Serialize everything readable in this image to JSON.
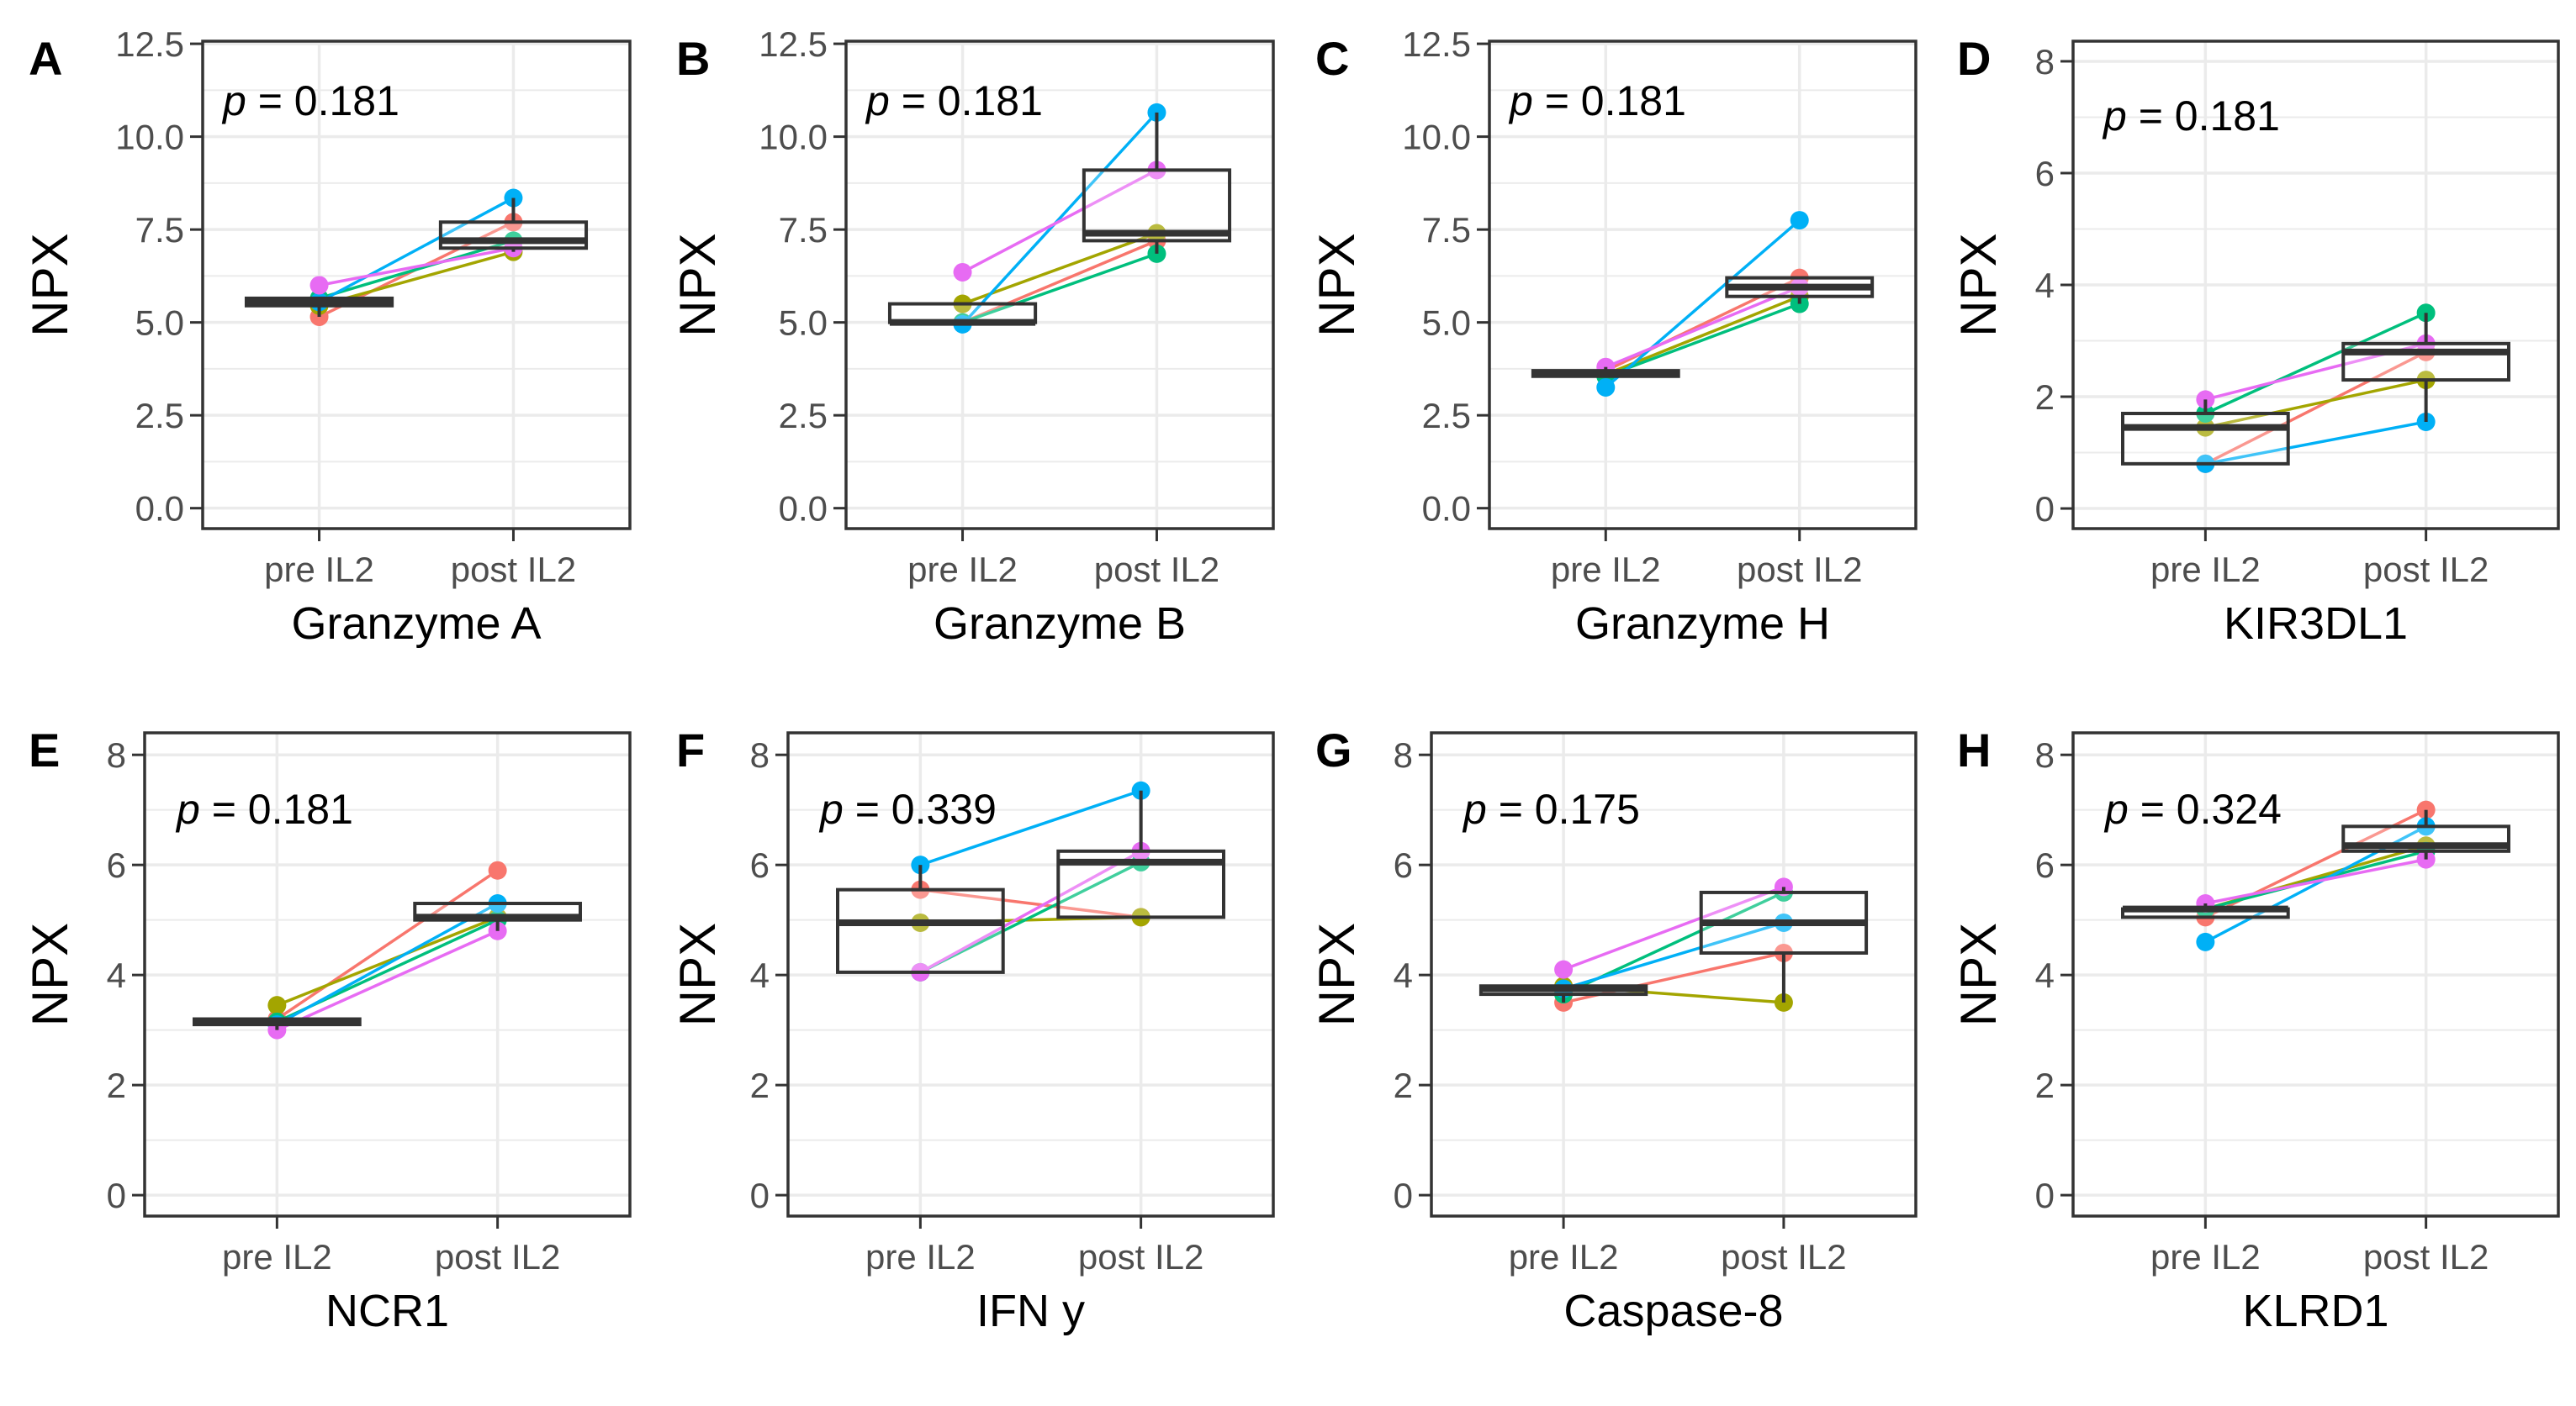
{
  "figure": {
    "colors": {
      "subject_1": "#F8766D",
      "subject_2": "#A3A500",
      "subject_3": "#00BF7D",
      "subject_4": "#00B0F6",
      "subject_5": "#E76BF3",
      "box": "#333333",
      "grid": "#ebebeb"
    }
  },
  "chart_data": [
    {
      "type": "box",
      "panel": "A",
      "p_text": "p = 0.181",
      "title": "Granzyme A",
      "ylabel": "NPX",
      "categories": [
        "pre IL2",
        "post IL2"
      ],
      "ylim": [
        -0.55,
        12.57
      ],
      "y_ticks": [
        0,
        2.5,
        5,
        7.5,
        10,
        12.5
      ],
      "y_tick_labels": [
        "0.0",
        "2.5",
        "5.0",
        "7.5",
        "10.0",
        "12.5"
      ],
      "grid": true,
      "series": [
        {
          "values": [
            5.15,
            7.7
          ]
        },
        {
          "values": [
            5.45,
            6.9
          ]
        },
        {
          "values": [
            5.65,
            7.2
          ]
        },
        {
          "values": [
            5.55,
            8.35
          ]
        },
        {
          "values": [
            6.0,
            7.0
          ]
        }
      ]
    },
    {
      "type": "box",
      "panel": "B",
      "p_text": "p = 0.181",
      "title": "Granzyme B",
      "ylabel": "NPX",
      "categories": [
        "pre IL2",
        "post IL2"
      ],
      "ylim": [
        -0.55,
        12.57
      ],
      "y_ticks": [
        0,
        2.5,
        5,
        7.5,
        10,
        12.5
      ],
      "y_tick_labels": [
        "0.0",
        "2.5",
        "5.0",
        "7.5",
        "10.0",
        "12.5"
      ],
      "grid": true,
      "series": [
        {
          "values": [
            5.0,
            7.2
          ]
        },
        {
          "values": [
            5.5,
            7.4
          ]
        },
        {
          "values": [
            5.0,
            6.85
          ]
        },
        {
          "values": [
            4.95,
            10.65
          ]
        },
        {
          "values": [
            6.35,
            9.1
          ]
        }
      ]
    },
    {
      "type": "box",
      "panel": "C",
      "p_text": "p = 0.181",
      "title": "Granzyme H",
      "ylabel": "NPX",
      "categories": [
        "pre IL2",
        "post IL2"
      ],
      "ylim": [
        -0.55,
        12.57
      ],
      "y_ticks": [
        0,
        2.5,
        5,
        7.5,
        10,
        12.5
      ],
      "y_tick_labels": [
        "0.0",
        "2.5",
        "5.0",
        "7.5",
        "10.0",
        "12.5"
      ],
      "grid": true,
      "series": [
        {
          "values": [
            3.7,
            6.2
          ]
        },
        {
          "values": [
            3.6,
            5.7
          ]
        },
        {
          "values": [
            3.55,
            5.5
          ]
        },
        {
          "values": [
            3.25,
            7.75
          ]
        },
        {
          "values": [
            3.8,
            5.95
          ]
        }
      ]
    },
    {
      "type": "box",
      "panel": "D",
      "p_text": "p = 0.181",
      "title": "KIR3DL1",
      "ylabel": "NPX",
      "categories": [
        "pre IL2",
        "post IL2"
      ],
      "ylim": [
        -0.36,
        8.36
      ],
      "y_ticks": [
        0,
        2,
        4,
        6,
        8
      ],
      "y_tick_labels": [
        "0",
        "2",
        "4",
        "6",
        "8"
      ],
      "grid": true,
      "series": [
        {
          "values": [
            0.8,
            2.8
          ]
        },
        {
          "values": [
            1.45,
            2.3
          ]
        },
        {
          "values": [
            1.7,
            3.5
          ]
        },
        {
          "values": [
            0.8,
            1.55
          ]
        },
        {
          "values": [
            1.95,
            2.95
          ]
        }
      ]
    },
    {
      "type": "box",
      "panel": "E",
      "p_text": "p = 0.181",
      "title": "NCR1",
      "ylabel": "NPX",
      "categories": [
        "pre IL2",
        "post IL2"
      ],
      "ylim": [
        -0.38,
        8.4
      ],
      "y_ticks": [
        0,
        2,
        4,
        6,
        8
      ],
      "y_tick_labels": [
        "0",
        "2",
        "4",
        "6",
        "8"
      ],
      "grid": true,
      "series": [
        {
          "values": [
            3.2,
            5.9
          ]
        },
        {
          "values": [
            3.45,
            5.05
          ]
        },
        {
          "values": [
            3.15,
            5.0
          ]
        },
        {
          "values": [
            3.1,
            5.3
          ]
        },
        {
          "values": [
            3.0,
            4.8
          ]
        }
      ]
    },
    {
      "type": "box",
      "panel": "F",
      "p_text": "p = 0.339",
      "title": "IFN y",
      "ylabel": "NPX",
      "categories": [
        "pre IL2",
        "post IL2"
      ],
      "ylim": [
        -0.38,
        8.4
      ],
      "y_ticks": [
        0,
        2,
        4,
        6,
        8
      ],
      "y_tick_labels": [
        "0",
        "2",
        "4",
        "6",
        "8"
      ],
      "grid": true,
      "series": [
        {
          "values": [
            5.55,
            5.05
          ]
        },
        {
          "values": [
            4.95,
            5.05
          ]
        },
        {
          "values": [
            4.05,
            6.05
          ]
        },
        {
          "values": [
            6.0,
            7.35
          ]
        },
        {
          "values": [
            4.05,
            6.25
          ]
        }
      ]
    },
    {
      "type": "box",
      "panel": "G",
      "p_text": "p = 0.175",
      "title": "Caspase-8",
      "ylabel": "NPX",
      "categories": [
        "pre IL2",
        "post IL2"
      ],
      "ylim": [
        -0.38,
        8.4
      ],
      "y_ticks": [
        0,
        2,
        4,
        6,
        8
      ],
      "y_tick_labels": [
        "0",
        "2",
        "4",
        "6",
        "8"
      ],
      "grid": true,
      "series": [
        {
          "values": [
            3.5,
            4.4
          ]
        },
        {
          "values": [
            3.8,
            3.5
          ]
        },
        {
          "values": [
            3.65,
            5.5
          ]
        },
        {
          "values": [
            3.75,
            4.95
          ]
        },
        {
          "values": [
            4.1,
            5.6
          ]
        }
      ]
    },
    {
      "type": "box",
      "panel": "H",
      "p_text": "p = 0.324",
      "title": "KLRD1",
      "ylabel": "NPX",
      "categories": [
        "pre IL2",
        "post IL2"
      ],
      "ylim": [
        -0.38,
        8.4
      ],
      "y_ticks": [
        0,
        2,
        4,
        6,
        8
      ],
      "y_tick_labels": [
        "0",
        "2",
        "4",
        "6",
        "8"
      ],
      "grid": true,
      "series": [
        {
          "values": [
            5.05,
            7.0
          ]
        },
        {
          "values": [
            5.2,
            6.35
          ]
        },
        {
          "values": [
            5.2,
            6.25
          ]
        },
        {
          "values": [
            4.6,
            6.7
          ]
        },
        {
          "values": [
            5.3,
            6.1
          ]
        }
      ]
    }
  ]
}
